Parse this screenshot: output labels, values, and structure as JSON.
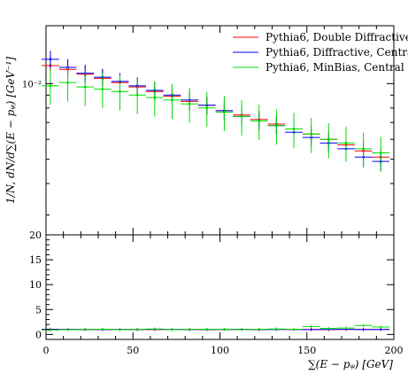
{
  "chart_data": {
    "type": "scatter",
    "title": "",
    "xlabel": "∑(E − pᵩ) [GeV]",
    "ylabel": "1/N, dN/d∑(E − pᵩ) [GeV⁻¹]",
    "xlim": [
      0,
      200
    ],
    "ylim_log": [
      0.0025,
      0.017
    ],
    "ratio_ylim": [
      -1,
      20
    ],
    "xticks": [
      "0",
      "50",
      "100",
      "150",
      "200"
    ],
    "yticks_main": [
      {
        "value": 0.01,
        "label": "10⁻²"
      }
    ],
    "yticks_ratio": [
      "0",
      "5",
      "10",
      "15",
      "20"
    ],
    "legend": {
      "position": "top-right"
    },
    "series": [
      {
        "name": "Pythia6, Double Diffractive",
        "color": "#ff0000",
        "x": [
          2.5,
          12.5,
          22.5,
          32.5,
          42.5,
          52.5,
          62.5,
          72.5,
          82.5,
          92.5,
          102.5,
          112.5,
          122.5,
          132.5,
          142.5,
          152.5,
          162.5,
          172.5,
          182.5,
          192.5
        ],
        "y": [
          0.0118,
          0.0114,
          0.0109,
          0.0105,
          0.0101,
          0.0097,
          0.0093,
          0.0089,
          0.0085,
          0.0082,
          0.0078,
          0.0075,
          0.0072,
          0.0069,
          0.0066,
          0.0063,
          0.006,
          0.0057,
          0.0054,
          0.0051
        ],
        "ratio": [
          1.05,
          1.0,
          1.02,
          0.98,
          1.0,
          1.03,
          0.97,
          1.0,
          1.02,
          0.99,
          1.01,
          1.0,
          0.98,
          1.02,
          1.0,
          1.01,
          0.99,
          1.0,
          1.03,
          1.0
        ]
      },
      {
        "name": "Pythia6, Diffractive, Central",
        "color": "#0000ff",
        "x": [
          2.5,
          12.5,
          22.5,
          32.5,
          42.5,
          52.5,
          62.5,
          72.5,
          82.5,
          92.5,
          102.5,
          112.5,
          122.5,
          132.5,
          142.5,
          152.5,
          162.5,
          172.5,
          182.5,
          192.5
        ],
        "y": [
          0.0125,
          0.0116,
          0.011,
          0.0106,
          0.0102,
          0.0098,
          0.0094,
          0.009,
          0.0086,
          0.0082,
          0.0078,
          0.0074,
          0.0071,
          0.0068,
          0.0064,
          0.0061,
          0.0058,
          0.0055,
          0.0051,
          0.0049
        ],
        "ratio": [
          1.0,
          1.02,
          0.99,
          1.01,
          1.0,
          0.98,
          1.02,
          1.0,
          0.99,
          1.01,
          1.0,
          1.02,
          0.98,
          1.0,
          1.01,
          0.99,
          1.0,
          1.02,
          0.98,
          1.0
        ]
      },
      {
        "name": "Pythia6, MinBias, Central",
        "color": "#00dd00",
        "x": [
          2.5,
          12.5,
          22.5,
          32.5,
          42.5,
          52.5,
          62.5,
          72.5,
          82.5,
          92.5,
          102.5,
          112.5,
          122.5,
          132.5,
          142.5,
          152.5,
          162.5,
          172.5,
          182.5,
          192.5
        ],
        "y": [
          0.0098,
          0.0101,
          0.0097,
          0.0095,
          0.0093,
          0.009,
          0.0088,
          0.0086,
          0.0083,
          0.008,
          0.0077,
          0.0074,
          0.0071,
          0.0068,
          0.0066,
          0.0063,
          0.006,
          0.0058,
          0.0055,
          0.0053
        ],
        "ratio": [
          0.9,
          0.95,
          1.0,
          1.05,
          0.95,
          1.0,
          1.1,
          0.95,
          1.0,
          1.05,
          1.0,
          0.98,
          1.02,
          1.1,
          1.05,
          1.6,
          1.2,
          1.3,
          1.8,
          1.5
        ]
      }
    ]
  }
}
